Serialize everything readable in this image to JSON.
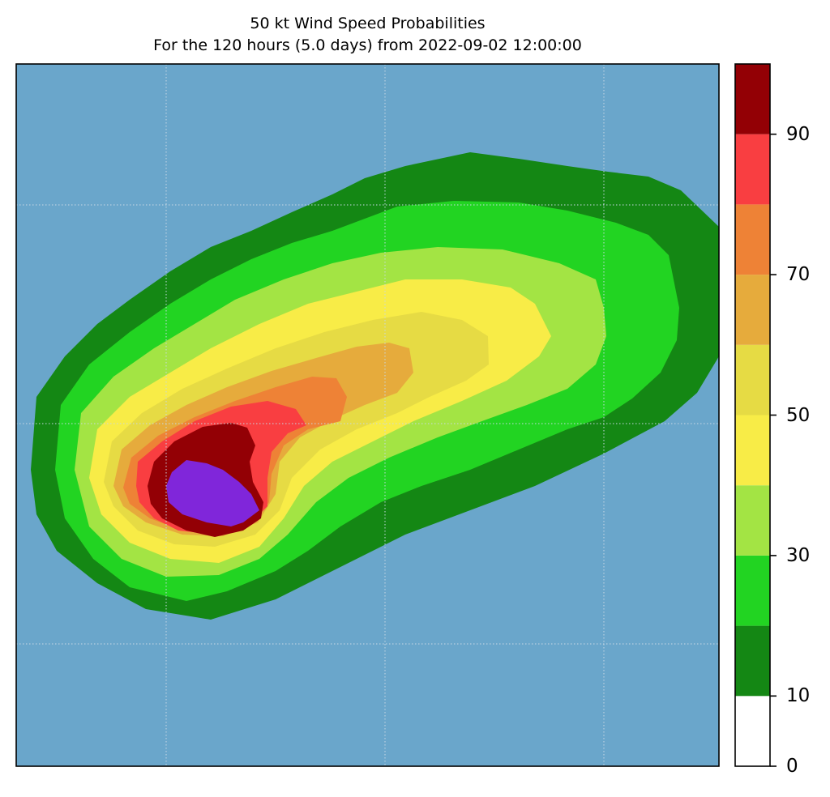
{
  "title": {
    "line1": "50 kt Wind Speed Probabilities",
    "line2": "For the 120 hours (5.0 days) from 2022-09-02 12:00:00"
  },
  "colors": {
    "ocean": "#6aa6cb",
    "gridline": "#c8d8e4",
    "levels": [
      "#ffffff",
      "#148714",
      "#22d422",
      "#a3e444",
      "#f8ec47",
      "#e6db44",
      "#e6ab3c",
      "#ee8236",
      "#f93e41",
      "#930005",
      "#8026da"
    ]
  },
  "colorbar": {
    "levels": [
      0,
      10,
      20,
      30,
      40,
      50,
      60,
      70,
      80,
      90,
      100
    ],
    "tick_labels": [
      "0",
      "10",
      "30",
      "50",
      "70",
      "90"
    ],
    "tick_values": [
      0,
      10,
      30,
      50,
      70,
      90
    ]
  },
  "gridlines": "dotted"
}
